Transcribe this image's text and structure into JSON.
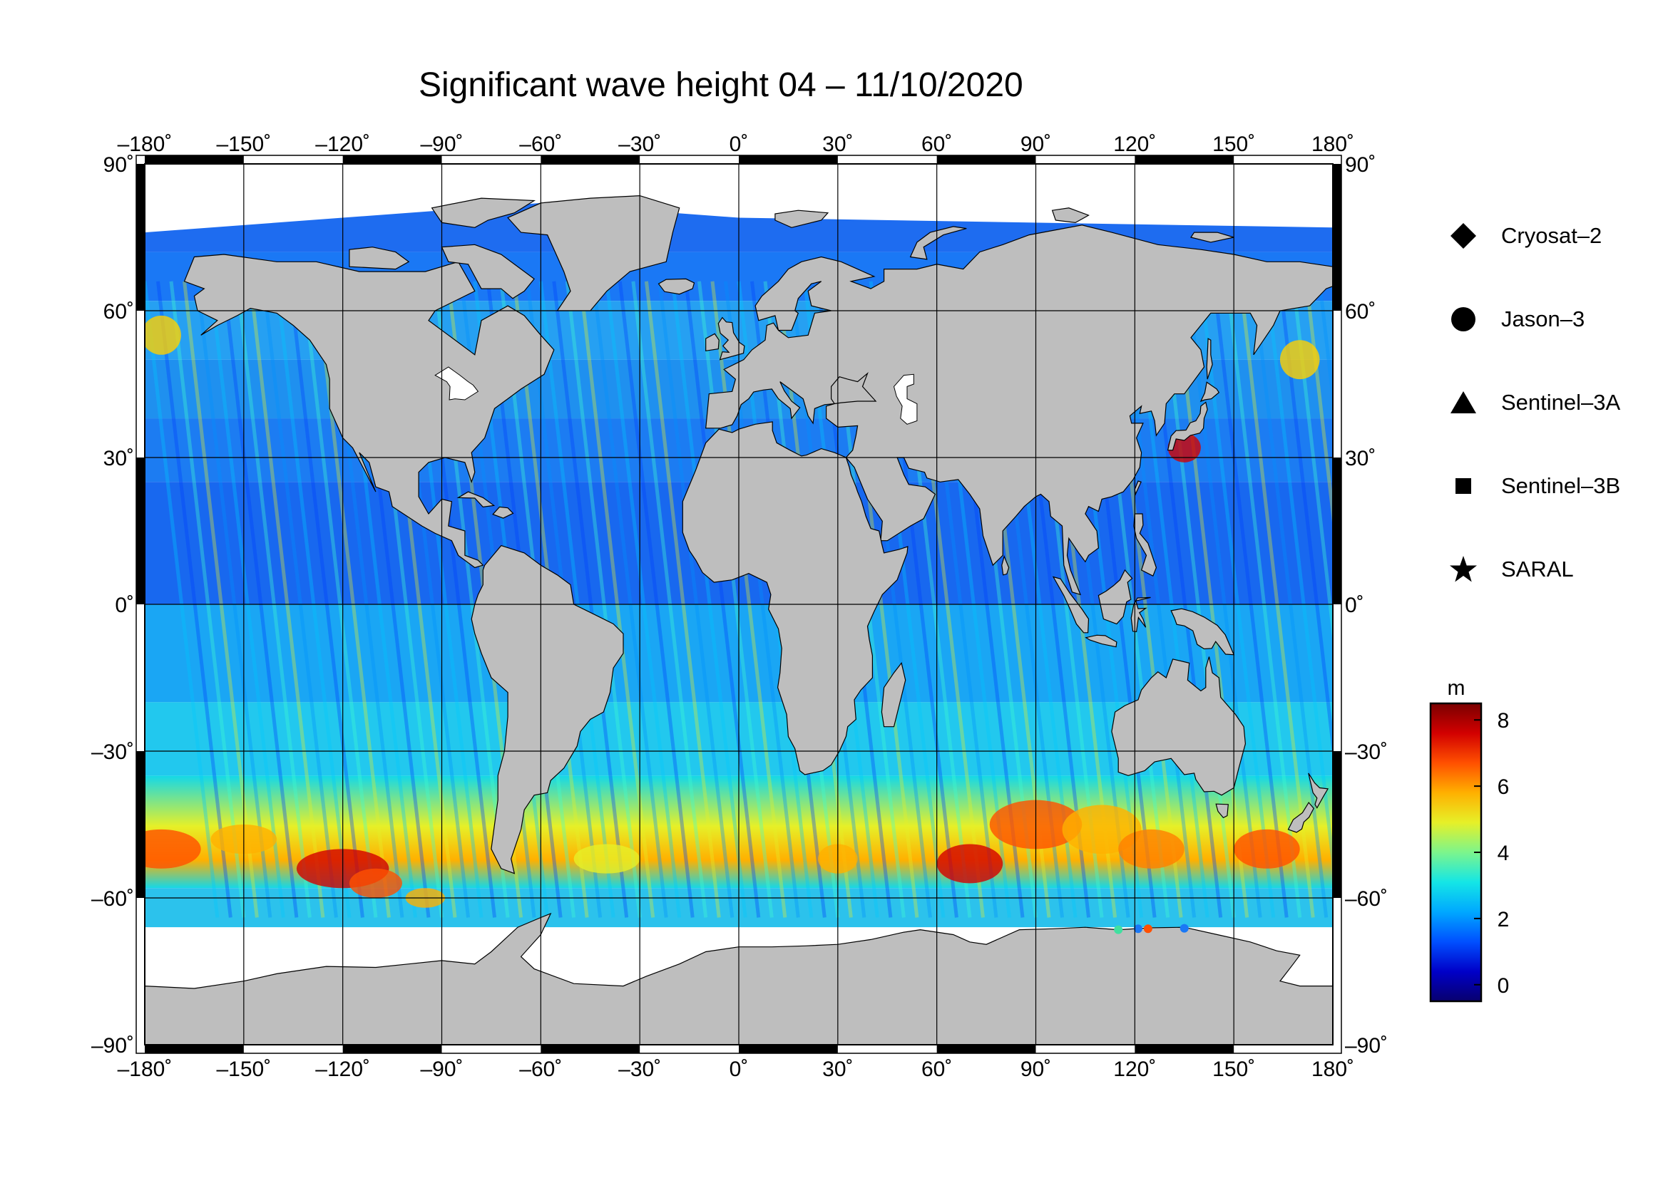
{
  "title": "Significant wave height 04 – 11/10/2020",
  "axes": {
    "lon_ticks": [
      "–180˚",
      "–150˚",
      "–120˚",
      "–90˚",
      "–60˚",
      "–30˚",
      "0˚",
      "30˚",
      "60˚",
      "90˚",
      "120˚",
      "150˚",
      "180˚"
    ],
    "lat_ticks": [
      "90˚",
      "60˚",
      "30˚",
      "0˚",
      "–30˚",
      "–60˚",
      "–90˚"
    ],
    "lon_range": [
      -180,
      180
    ],
    "lat_range": [
      -90,
      90
    ],
    "graticule_step_deg": 30,
    "grid": true
  },
  "legend": {
    "items": [
      {
        "label": "Cryosat–2",
        "symbol": "diamond-icon"
      },
      {
        "label": "Jason–3",
        "symbol": "circle-icon"
      },
      {
        "label": "Sentinel–3A",
        "symbol": "triangle-icon"
      },
      {
        "label": "Sentinel–3B",
        "symbol": "square-icon"
      },
      {
        "label": "SARAL",
        "symbol": "star-icon"
      }
    ]
  },
  "colorbar": {
    "unit": "m",
    "ticks": [
      "8",
      "6",
      "4",
      "2",
      "0"
    ],
    "range": [
      -0.5,
      8.5
    ],
    "colors": [
      "#08006e",
      "#0000c8",
      "#0050ff",
      "#00a8ff",
      "#14e6e6",
      "#7cf58c",
      "#e6f028",
      "#ffb000",
      "#ff5000",
      "#d20000",
      "#7a0000"
    ]
  },
  "colors": {
    "land": "#bebebe",
    "ice": "#ffffff",
    "frame": "#000000"
  }
}
